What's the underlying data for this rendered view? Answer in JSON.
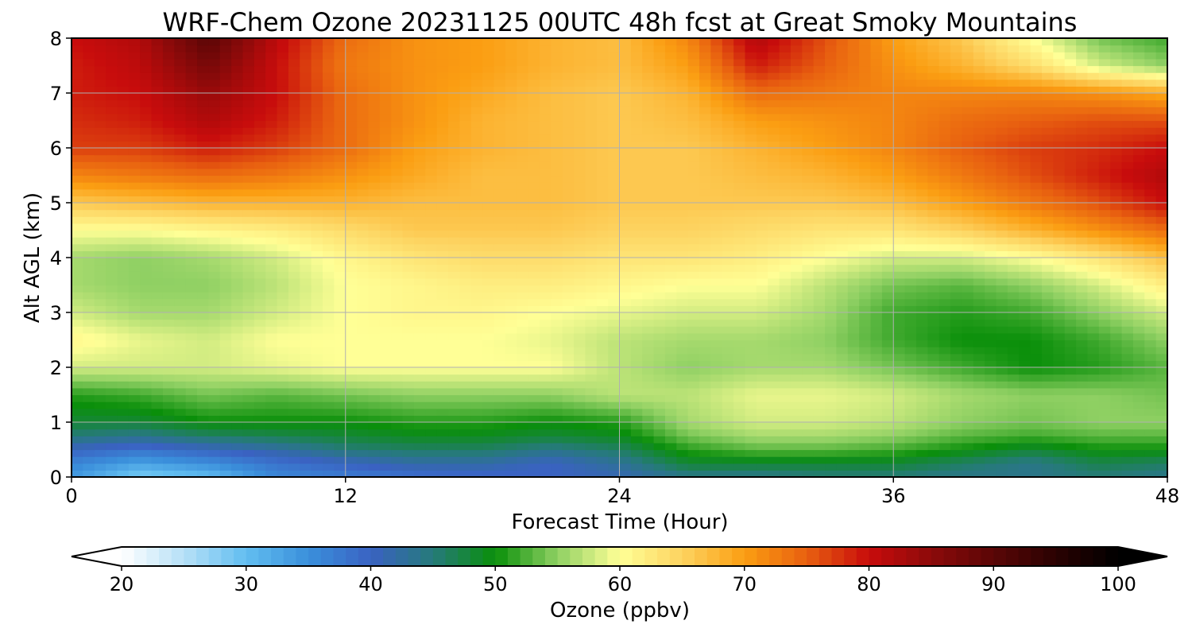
{
  "chart_data": {
    "type": "heatmap",
    "title": "WRF-Chem Ozone  20231125 00UTC 48h fcst at Great Smoky Mountains",
    "xlabel": "Forecast Time (Hour)",
    "ylabel": "Alt AGL (km)",
    "xlim": [
      0,
      48
    ],
    "ylim": [
      0,
      8
    ],
    "x_ticks": [
      0,
      12,
      24,
      36,
      48
    ],
    "y_ticks": [
      0,
      1,
      2,
      3,
      4,
      5,
      6,
      7,
      8
    ],
    "grid": true,
    "x": [
      0,
      3,
      6,
      9,
      12,
      15,
      18,
      21,
      24,
      27,
      30,
      33,
      36,
      39,
      42,
      45,
      48
    ],
    "y": [
      0,
      0.25,
      0.5,
      0.75,
      1,
      1.5,
      2,
      2.5,
      3,
      3.5,
      4,
      4.5,
      5,
      5.5,
      6,
      6.5,
      7,
      7.5,
      8
    ],
    "z": [
      [
        34,
        28,
        30,
        36,
        37,
        38,
        39,
        40,
        41,
        44,
        44,
        45,
        45,
        44,
        44,
        45,
        44
      ],
      [
        36,
        33,
        35,
        38,
        40,
        42,
        42,
        40,
        43,
        48,
        48,
        48,
        48,
        46,
        44,
        47,
        46
      ],
      [
        40,
        38,
        40,
        42,
        45,
        46,
        46,
        44,
        46,
        51,
        53,
        53,
        52,
        50,
        48,
        50,
        50
      ],
      [
        45,
        44,
        46,
        47,
        48,
        49,
        49,
        48,
        49,
        54,
        56,
        56,
        55,
        53,
        52,
        53,
        53
      ],
      [
        48,
        48,
        50,
        50,
        50,
        51,
        51,
        50,
        51,
        56,
        58,
        58,
        57,
        55,
        54,
        55,
        55
      ],
      [
        51,
        52,
        54,
        53,
        54,
        55,
        55,
        55,
        57,
        57,
        59,
        59,
        58,
        56,
        55,
        55,
        54
      ],
      [
        58,
        58,
        58,
        59,
        60,
        60,
        60,
        60,
        57,
        55,
        56,
        56,
        54,
        52,
        50,
        51,
        53
      ],
      [
        61,
        59,
        58,
        60,
        60,
        60,
        60,
        59,
        57,
        56,
        56,
        55,
        52,
        50,
        50,
        52,
        55
      ],
      [
        58,
        56,
        56,
        58,
        60,
        61,
        61,
        60,
        59,
        58,
        58,
        56,
        52,
        51,
        52,
        55,
        58
      ],
      [
        56,
        55,
        55,
        57,
        60,
        61,
        62,
        62,
        61,
        60,
        60,
        57,
        54,
        53,
        55,
        58,
        62
      ],
      [
        56,
        55,
        56,
        58,
        61,
        63,
        64,
        64,
        63,
        63,
        62,
        60,
        58,
        58,
        60,
        63,
        67
      ],
      [
        60,
        60,
        61,
        62,
        64,
        66,
        66,
        66,
        65,
        65,
        64,
        63,
        63,
        65,
        68,
        71,
        74
      ],
      [
        66,
        67,
        68,
        68,
        68,
        67,
        67,
        67,
        66,
        66,
        66,
        66,
        67,
        70,
        73,
        76,
        80
      ],
      [
        72,
        73,
        74,
        73,
        71,
        69,
        67,
        67,
        66,
        66,
        67,
        68,
        70,
        73,
        76,
        79,
        82
      ],
      [
        77,
        77,
        79,
        77,
        74,
        70,
        68,
        67,
        66,
        66,
        68,
        70,
        72,
        75,
        77,
        78,
        80
      ],
      [
        78,
        79,
        82,
        79,
        74,
        71,
        68,
        67,
        66,
        67,
        70,
        71,
        72,
        74,
        75,
        76,
        76
      ],
      [
        79,
        80,
        84,
        80,
        74,
        71,
        69,
        67,
        66,
        68,
        74,
        73,
        72,
        72,
        72,
        71,
        69
      ],
      [
        79,
        81,
        87,
        80,
        73,
        71,
        70,
        68,
        67,
        70,
        79,
        75,
        71,
        68,
        64,
        58,
        55
      ],
      [
        80,
        82,
        90,
        81,
        74,
        71,
        70,
        68,
        67,
        72,
        82,
        76,
        70,
        66,
        60,
        54,
        52
      ]
    ],
    "colorbar": {
      "label": "Ozone  (ppbv)",
      "min": 20,
      "max": 100,
      "ticks": [
        20,
        30,
        40,
        50,
        60,
        70,
        80,
        90,
        100
      ],
      "extend": "both",
      "stops": [
        [
          20,
          "#ffffff"
        ],
        [
          25,
          "#b6e0f7"
        ],
        [
          30,
          "#62bef0"
        ],
        [
          35,
          "#3a8fdb"
        ],
        [
          40,
          "#3a62c2"
        ],
        [
          45,
          "#267a7a"
        ],
        [
          50,
          "#0a8f0a"
        ],
        [
          55,
          "#8fd063"
        ],
        [
          60,
          "#ffff96"
        ],
        [
          65,
          "#fdd360"
        ],
        [
          70,
          "#fb9e12"
        ],
        [
          75,
          "#e86010"
        ],
        [
          80,
          "#c80c0c"
        ],
        [
          85,
          "#8c0a0a"
        ],
        [
          90,
          "#5a0606"
        ],
        [
          95,
          "#2a0202"
        ],
        [
          100,
          "#000000"
        ]
      ]
    }
  }
}
